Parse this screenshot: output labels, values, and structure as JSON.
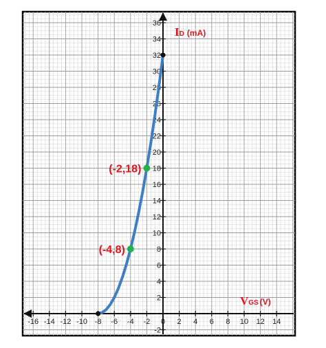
{
  "chart_data": {
    "type": "line",
    "x_label_main": "V",
    "x_label_sub": "GS",
    "x_label_unit": "(V)",
    "y_label_main": "I",
    "y_label_sub": "D",
    "y_label_unit": "(mA)",
    "xlim": [
      -17,
      16
    ],
    "ylim": [
      -2,
      36
    ],
    "x_ticks": [
      -16,
      -14,
      -12,
      -10,
      -8,
      -6,
      -4,
      -2,
      0,
      2,
      4,
      6,
      8,
      10,
      12,
      14
    ],
    "y_ticks": [
      -2,
      2,
      4,
      6,
      8,
      10,
      12,
      14,
      16,
      18,
      20,
      22,
      24,
      26,
      28,
      30,
      32,
      34,
      36
    ],
    "grid": true,
    "colors": {
      "curve": "#3f7fc1",
      "point": "#22b14c",
      "label": "#e0141e",
      "axis": "#111111"
    },
    "series": [
      {
        "x": [
          -8,
          -7.5,
          -7,
          -6.5,
          -6,
          -5.5,
          -5,
          -4.5,
          -4,
          -3.5,
          -3,
          -2.5,
          -2,
          -1.5,
          -1,
          -0.5,
          0
        ],
        "y": [
          0,
          0.125,
          0.5,
          1.125,
          2,
          3.125,
          4.5,
          6.125,
          8,
          10.125,
          12.5,
          15.125,
          18,
          21.125,
          24.5,
          28.125,
          32
        ]
      }
    ],
    "points": [
      {
        "x": -4,
        "y": 8,
        "label": "(-4,8)",
        "color": "#22b14c"
      },
      {
        "x": -2,
        "y": 18,
        "label": "(-2,18)",
        "color": "#22b14c"
      },
      {
        "x": -8,
        "y": 0,
        "label": "",
        "color": "#111111"
      },
      {
        "x": 0,
        "y": 32,
        "label": "",
        "color": "#111111"
      }
    ]
  }
}
